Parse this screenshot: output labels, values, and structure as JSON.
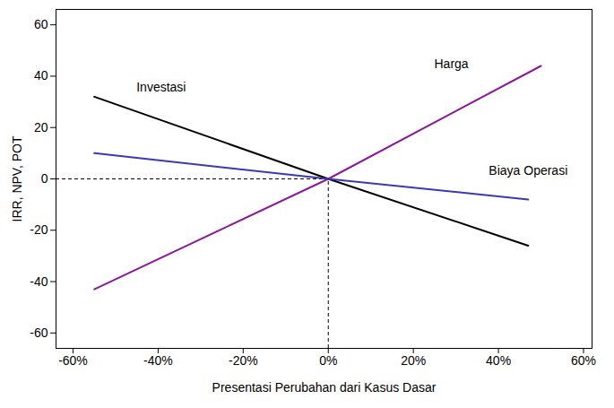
{
  "chart_data": {
    "type": "line",
    "xlabel": "Presentasi Perubahan dari Kasus Dasar",
    "ylabel": "IRR, NPV, POT",
    "xlim": [
      -64,
      62
    ],
    "ylim": [
      -66,
      66
    ],
    "xticks": [
      {
        "value": -60,
        "label": "-60%"
      },
      {
        "value": -40,
        "label": "-40%"
      },
      {
        "value": -20,
        "label": "-20%"
      },
      {
        "value": 0,
        "label": "0%"
      },
      {
        "value": 20,
        "label": "20%"
      },
      {
        "value": 40,
        "label": "40%"
      },
      {
        "value": 60,
        "label": "60%"
      }
    ],
    "yticks": [
      -60,
      -40,
      -20,
      0,
      20,
      40,
      60
    ],
    "base_case": {
      "x": 0,
      "y": 0
    },
    "grid": false,
    "series": [
      {
        "name": "Investasi",
        "color": "#000000",
        "x": [
          -55,
          0,
          47
        ],
        "values": [
          32,
          0,
          -26
        ]
      },
      {
        "name": "Harga",
        "color": "#8b1a9a",
        "x": [
          -55,
          0,
          50
        ],
        "values": [
          -43,
          0,
          44
        ]
      },
      {
        "name": "Biaya Operasi",
        "color": "#3a3ab0",
        "x": [
          -55,
          0,
          47
        ],
        "values": [
          10,
          0,
          -8
        ]
      }
    ]
  }
}
